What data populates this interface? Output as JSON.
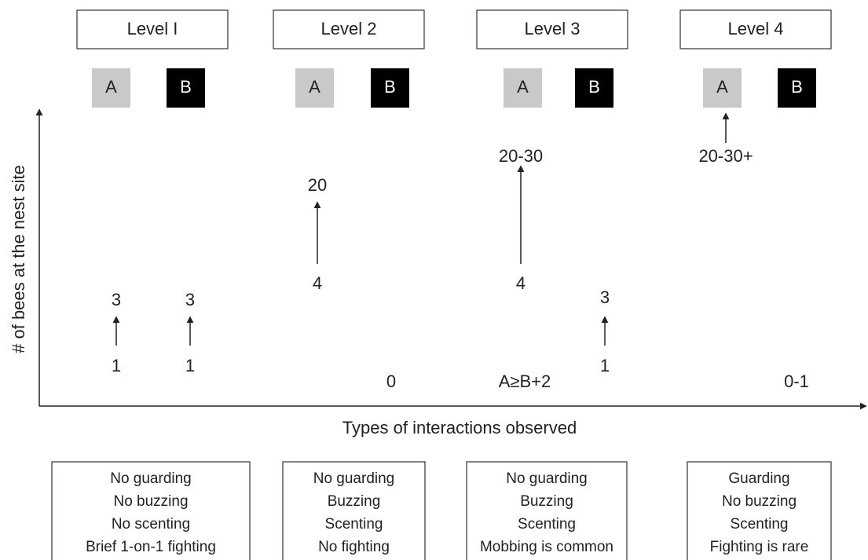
{
  "levels": [
    {
      "label": "Level I",
      "a": "A",
      "b": "B",
      "interactions": [
        "No guarding",
        "No buzzing",
        "No scenting",
        "Brief 1-on-1 fighting"
      ]
    },
    {
      "label": "Level 2",
      "a": "A",
      "b": "B",
      "interactions": [
        "No guarding",
        "Buzzing",
        "Scenting",
        "No fighting"
      ]
    },
    {
      "label": "Level 3",
      "a": "A",
      "b": "B",
      "interactions": [
        "No guarding",
        "Buzzing",
        "Scenting",
        "Mobbing is common"
      ]
    },
    {
      "label": "Level 4",
      "a": "A",
      "b": "B",
      "interactions": [
        "Guarding",
        "No buzzing",
        "Scenting",
        "Fighting is rare"
      ]
    }
  ],
  "y_axis_label": "# of bees at the nest site",
  "x_axis_label": "Types of interactions observed",
  "annotations": [
    "3",
    "1",
    "3",
    "1",
    "20",
    "4",
    "0",
    "20-30",
    "4",
    "A≥B+2",
    "3",
    "1",
    "20-30+",
    "0-1"
  ]
}
